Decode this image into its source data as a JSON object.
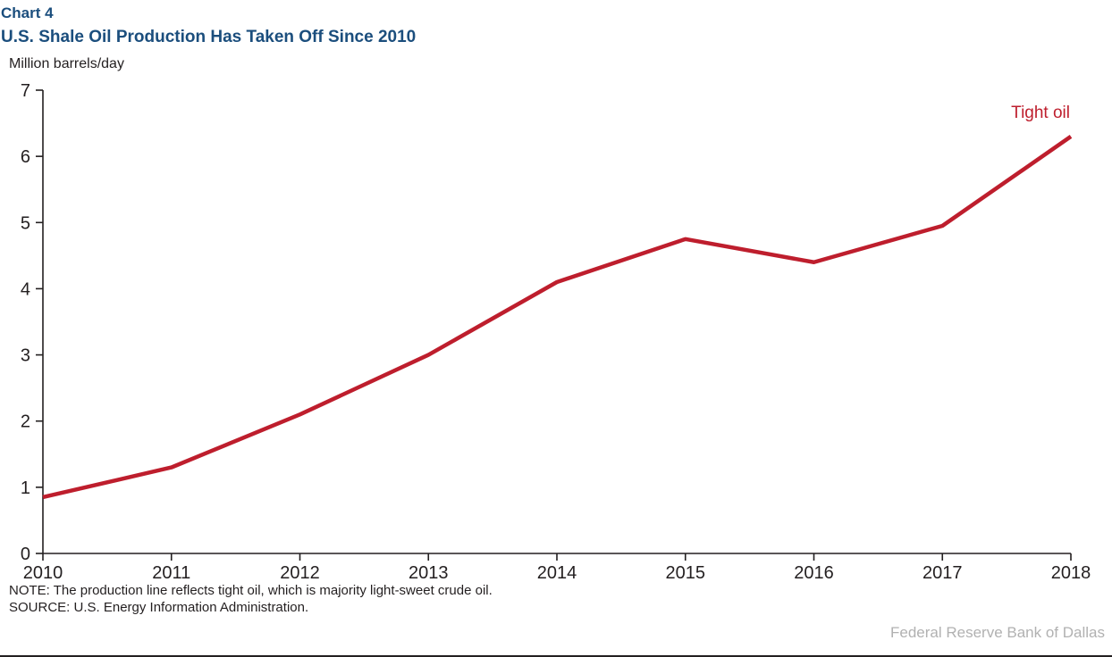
{
  "header": {
    "chart_number": "Chart 4",
    "title": "U.S. Shale Oil Production Has Taken Off Since 2010",
    "unit_label": "Million barrels/day"
  },
  "chart_data": {
    "type": "line",
    "x": [
      2010,
      2011,
      2012,
      2013,
      2014,
      2015,
      2016,
      2017,
      2018
    ],
    "series": [
      {
        "name": "Tight oil",
        "color": "#be1e2d",
        "values": [
          0.85,
          1.3,
          2.1,
          3.0,
          4.1,
          4.75,
          4.4,
          4.95,
          6.3
        ]
      }
    ],
    "title": "U.S. Shale Oil Production Has Taken Off Since 2010",
    "xlabel": "",
    "ylabel": "Million barrels/day",
    "ylim": [
      0,
      7
    ],
    "yticks": [
      0,
      1,
      2,
      3,
      4,
      5,
      6,
      7
    ],
    "xticks": [
      "2010",
      "2011",
      "2012",
      "2013",
      "2014",
      "2015",
      "2016",
      "2017",
      "2018"
    ],
    "grid": false,
    "legend_position": "annotation-top-right"
  },
  "footer": {
    "note": "NOTE: The production line reflects tight oil, which is majority light-sweet crude oil.",
    "source": "SOURCE: U.S. Energy Information Administration.",
    "branding": "Federal Reserve Bank of Dallas"
  },
  "colors": {
    "accent_red": "#be1e2d",
    "title_blue": "#1b4e7d",
    "axis_dark": "#231f20",
    "branding_gray": "#b1b1b1"
  }
}
